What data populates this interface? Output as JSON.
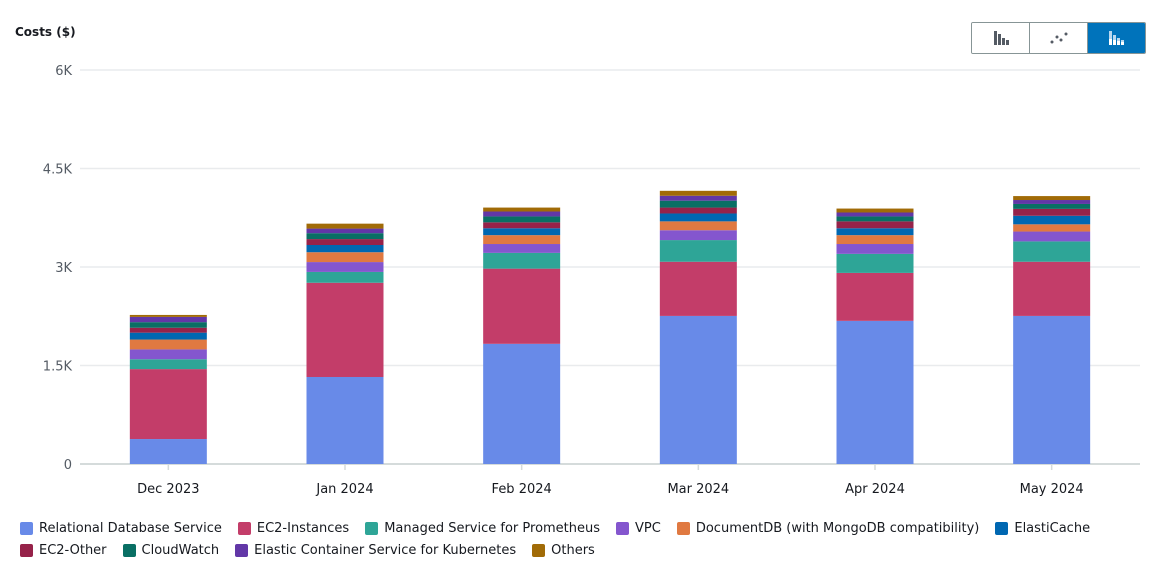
{
  "chart_data": {
    "type": "bar",
    "stacked": true,
    "ylabel": "Costs ($)",
    "ylim": [
      0,
      6000
    ],
    "yticks": [
      "0",
      "1.5K",
      "3K",
      "4.5K",
      "6K"
    ],
    "ytick_values": [
      0,
      1500,
      3000,
      4500,
      6000
    ],
    "grid": true,
    "legend_position": "bottom",
    "categories": [
      "Dec 2023",
      "Jan 2024",
      "Feb 2024",
      "Mar 2024",
      "Apr 2024",
      "May 2024"
    ],
    "series": [
      {
        "name": "Relational Database Service",
        "color": "#688ae8",
        "values": [
          380,
          1325,
          1830,
          2255,
          2180,
          2255
        ]
      },
      {
        "name": "EC2-Instances",
        "color": "#c33d69",
        "values": [
          1065,
          1435,
          1145,
          825,
          730,
          825
        ]
      },
      {
        "name": "Managed Service for Prometheus",
        "color": "#2ea597",
        "values": [
          150,
          165,
          240,
          330,
          290,
          310
        ]
      },
      {
        "name": "VPC",
        "color": "#8456ce",
        "values": [
          150,
          150,
          135,
          150,
          150,
          150
        ]
      },
      {
        "name": "DocumentDB (with MongoDB compatibility)",
        "color": "#e07941",
        "values": [
          150,
          150,
          135,
          135,
          135,
          110
        ]
      },
      {
        "name": "ElastiCache",
        "color": "#0067b1",
        "values": [
          105,
          110,
          105,
          120,
          105,
          130
        ]
      },
      {
        "name": "EC2-Other",
        "color": "#962249",
        "values": [
          75,
          90,
          90,
          90,
          105,
          105
        ]
      },
      {
        "name": "CloudWatch",
        "color": "#096f64",
        "values": [
          85,
          90,
          90,
          105,
          75,
          75
        ]
      },
      {
        "name": "Elastic Container Service for Kubernetes",
        "color": "#6237a7",
        "values": [
          80,
          70,
          75,
          75,
          60,
          60
        ]
      },
      {
        "name": "Others",
        "color": "#a16b07",
        "values": [
          30,
          75,
          60,
          75,
          60,
          60
        ]
      }
    ]
  },
  "toggle": {
    "buttons": [
      {
        "icon": "bar-chart-icon",
        "active": false
      },
      {
        "icon": "line-chart-icon",
        "active": false
      },
      {
        "icon": "stacked-bar-chart-icon",
        "active": true
      }
    ],
    "active_color": "#0073bb"
  }
}
